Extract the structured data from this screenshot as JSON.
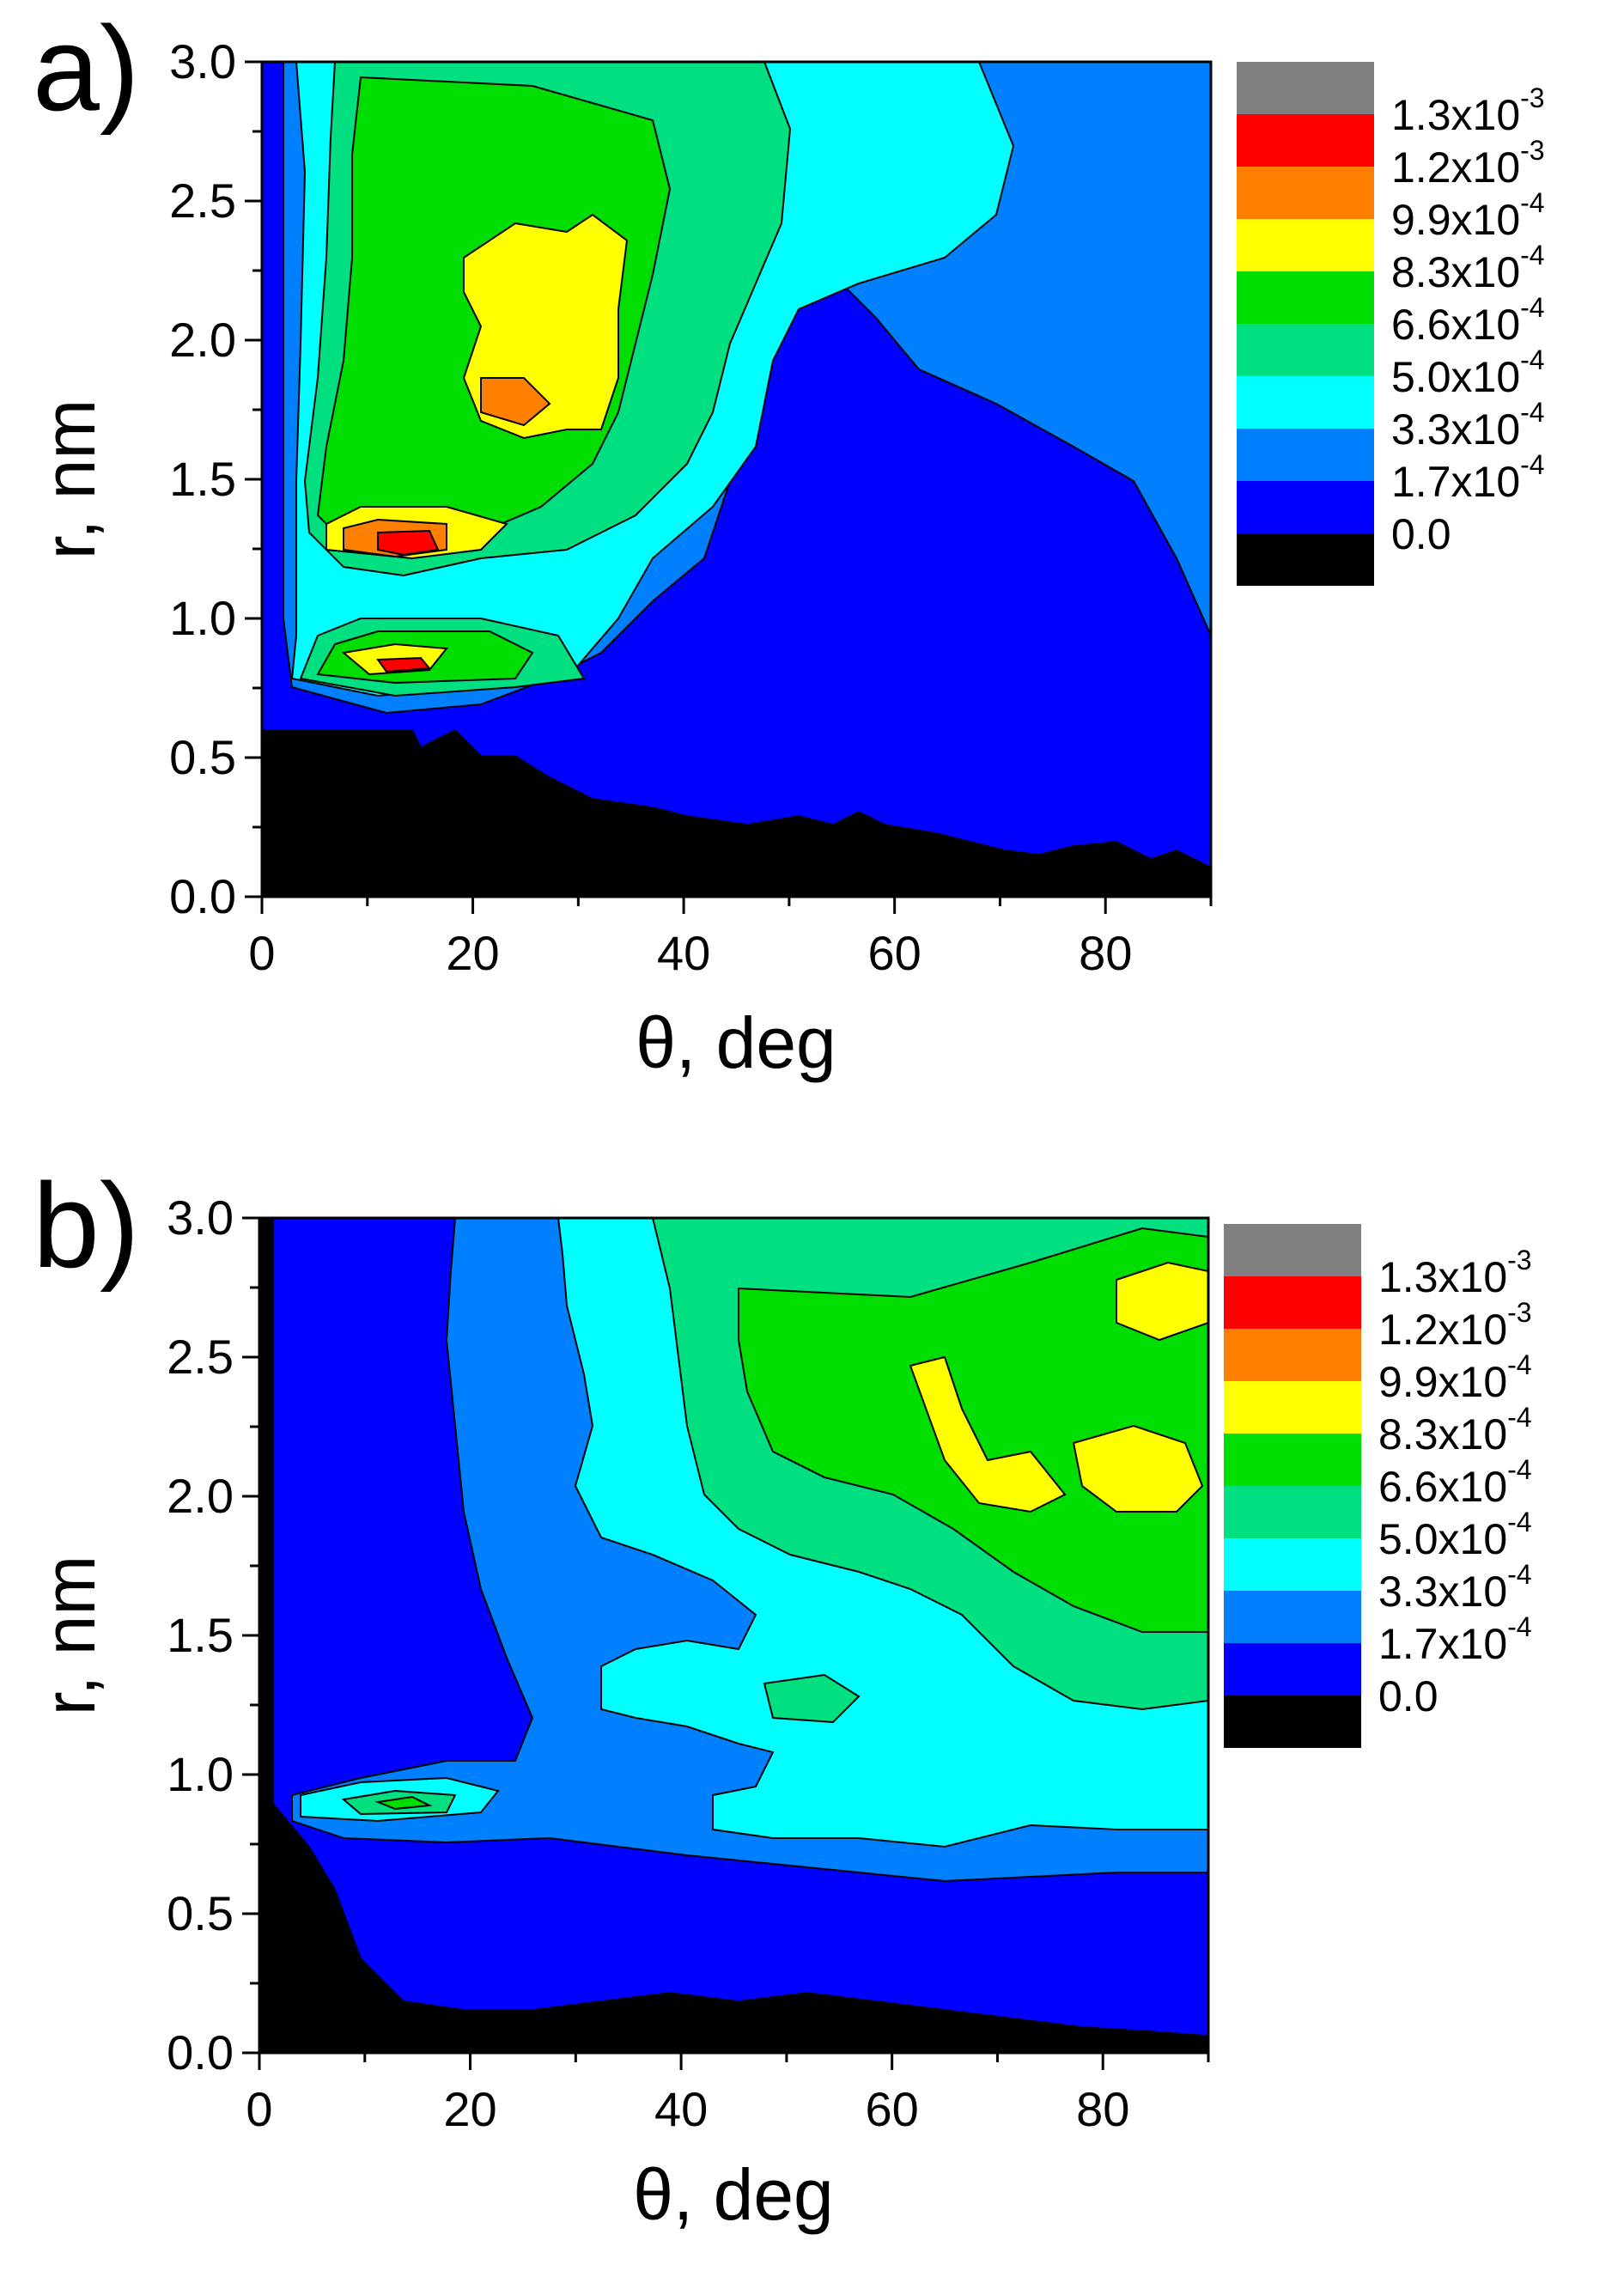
{
  "chart_data": [
    {
      "type": "heatmap",
      "panel_label": "a)",
      "xlabel": "θ, deg",
      "ylabel": "r, nm",
      "xlim": [
        0,
        90
      ],
      "ylim": [
        0.0,
        3.0
      ],
      "xticks": [
        "0",
        "20",
        "40",
        "60",
        "80"
      ],
      "xtick_values": [
        0,
        20,
        40,
        60,
        80
      ],
      "yticks": [
        "0.0",
        "0.5",
        "1.0",
        "1.5",
        "2.0",
        "2.5",
        "3.0"
      ],
      "ytick_values": [
        0.0,
        0.5,
        1.0,
        1.5,
        2.0,
        2.5,
        3.0
      ],
      "legend": {
        "position": "right",
        "colors": [
          "#808080",
          "#ff0000",
          "#ff8000",
          "#ffff00",
          "#00dd00",
          "#00e080",
          "#00ffff",
          "#0080ff",
          "#0000ff",
          "#000000"
        ],
        "labels": [
          {
            "mantissa": "1.3x10",
            "exp": "-3"
          },
          {
            "mantissa": "1.2x10",
            "exp": "-3"
          },
          {
            "mantissa": "9.9x10",
            "exp": "-4"
          },
          {
            "mantissa": "8.3x10",
            "exp": "-4"
          },
          {
            "mantissa": "6.6x10",
            "exp": "-4"
          },
          {
            "mantissa": "5.0x10",
            "exp": "-4"
          },
          {
            "mantissa": "3.3x10",
            "exp": "-4"
          },
          {
            "mantissa": "1.7x10",
            "exp": "-4"
          },
          {
            "mantissa": "0.0",
            "exp": ""
          }
        ]
      },
      "regions": [
        {
          "level": 0,
          "description": "r below 0.6 nm, extends upward to 0.3 near θ=60-90"
        },
        {
          "level": 1,
          "description": "background"
        },
        {
          "level": 2,
          "center": [
            30,
            1.6
          ],
          "r_range": [
            0.7,
            3.0
          ]
        },
        {
          "level": 3,
          "center": [
            25,
            1.9
          ],
          "r_range": [
            0.75,
            3.0
          ]
        },
        {
          "level": 4,
          "center": [
            22,
            2.0
          ],
          "r_range": [
            0.75,
            2.9
          ]
        },
        {
          "level": 5,
          "center": [
            20,
            2.0
          ],
          "r_range": [
            0.78,
            2.8
          ]
        },
        {
          "level": 6,
          "center": [
            22,
            2.0
          ],
          "r_range": [
            1.2,
            2.4
          ]
        },
        {
          "level": 7,
          "center": [
            14,
            1.22
          ],
          "r_range": [
            0.8,
            1.3
          ]
        },
        {
          "level": 8,
          "center": [
            14,
            0.8
          ],
          "r_range": [
            0.78,
            1.25
          ]
        }
      ]
    },
    {
      "type": "heatmap",
      "panel_label": "b)",
      "xlabel": "θ, deg",
      "ylabel": "r, nm",
      "xlim": [
        0,
        90
      ],
      "ylim": [
        0.0,
        3.0
      ],
      "xticks": [
        "0",
        "20",
        "40",
        "60",
        "80"
      ],
      "xtick_values": [
        0,
        20,
        40,
        60,
        80
      ],
      "yticks": [
        "0.0",
        "0.5",
        "1.0",
        "1.5",
        "2.0",
        "2.5",
        "3.0"
      ],
      "ytick_values": [
        0.0,
        0.5,
        1.0,
        1.5,
        2.0,
        2.5,
        3.0
      ],
      "legend": {
        "position": "right",
        "colors": [
          "#808080",
          "#ff0000",
          "#ff8000",
          "#ffff00",
          "#00dd00",
          "#00e080",
          "#00ffff",
          "#0080ff",
          "#0000ff",
          "#000000"
        ],
        "labels": [
          {
            "mantissa": "1.3x10",
            "exp": "-3"
          },
          {
            "mantissa": "1.2x10",
            "exp": "-3"
          },
          {
            "mantissa": "9.9x10",
            "exp": "-4"
          },
          {
            "mantissa": "8.3x10",
            "exp": "-4"
          },
          {
            "mantissa": "6.6x10",
            "exp": "-4"
          },
          {
            "mantissa": "5.0x10",
            "exp": "-4"
          },
          {
            "mantissa": "3.3x10",
            "exp": "-4"
          },
          {
            "mantissa": "1.7x10",
            "exp": "-4"
          },
          {
            "mantissa": "0.0",
            "exp": ""
          }
        ]
      },
      "regions": [
        {
          "level": 0,
          "description": "r below ~0.3 nm, strip near θ=0"
        },
        {
          "level": 1,
          "description": "background, left region and low r"
        },
        {
          "level": 2,
          "center": [
            55,
            1.6
          ],
          "r_range": [
            0.7,
            3.0
          ]
        },
        {
          "level": 3,
          "center": [
            60,
            1.8
          ],
          "r_range": [
            0.75,
            3.0
          ]
        },
        {
          "level": 4,
          "center": [
            65,
            2.2
          ],
          "r_range": [
            1.2,
            3.0
          ]
        },
        {
          "level": 5,
          "center": [
            70,
            2.2
          ],
          "r_range": [
            1.6,
            2.7
          ]
        },
        {
          "level": 6,
          "center": [
            72,
            2.2
          ],
          "r_range": [
            2.0,
            2.8
          ]
        }
      ]
    }
  ]
}
